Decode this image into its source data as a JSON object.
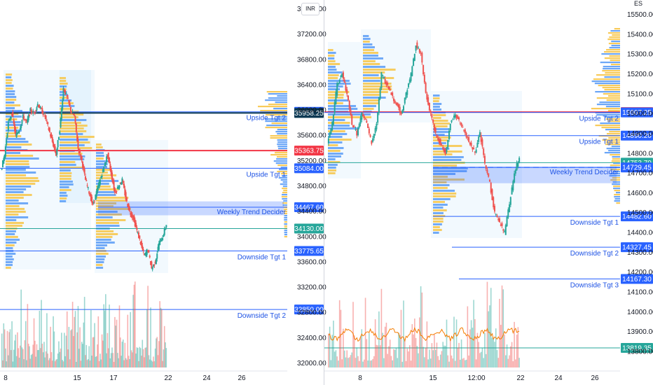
{
  "currency_badge": "INR",
  "settings_label": "ES",
  "panels": [
    {
      "id": "left",
      "price_axis_ticks": [
        "37600.00",
        "37200.00",
        "36800.00",
        "36400.00",
        "36000.00",
        "35600.00",
        "35200.00",
        "34800.00",
        "34400.00",
        "34000.00",
        "33600.00",
        "33200.00",
        "32800.00",
        "32400.00",
        "32000.00"
      ],
      "time_axis_ticks": [
        "8",
        "15",
        "17",
        "22",
        "24",
        "26"
      ],
      "lines": [
        {
          "label": "Upside Tgt 2",
          "price_tag": "35976.65",
          "color": "#2962ff"
        },
        {
          "label": "",
          "price_tag": "35958.25",
          "color": "#0b3954"
        },
        {
          "label": "",
          "price_tag": "35363.75",
          "color": "#f23645"
        },
        {
          "label": "Upside Tgt 1",
          "price_tag": "35084.00",
          "color": "#2962ff"
        },
        {
          "label": "Weekly Trend Decider",
          "price_tag": "34467.60",
          "color": "#2962ff"
        },
        {
          "label": "",
          "price_tag": "34130.00",
          "color": "#26a69a"
        },
        {
          "label": "Downside Tgt 1",
          "price_tag": "33775.65",
          "color": "#2962ff"
        },
        {
          "label": "Downside Tgt 2",
          "price_tag": "32850.00",
          "color": "#2962ff"
        }
      ]
    },
    {
      "id": "right",
      "price_axis_ticks": [
        "15500.00",
        "15400.00",
        "15300.00",
        "15200.00",
        "15100.00",
        "15000.00",
        "14900.00",
        "14800.00",
        "14700.00",
        "14600.00",
        "14500.00",
        "14400.00",
        "14300.00",
        "14200.00",
        "14100.00",
        "14000.00",
        "13900.00",
        "13800.00"
      ],
      "time_axis_ticks": [
        "8",
        "15",
        "12:00",
        "22",
        "24",
        "26"
      ],
      "lines": [
        {
          "label": "",
          "price_tag": "15008.65",
          "color": "#f23645"
        },
        {
          "label": "Upside Tgt 2",
          "price_tag": "15007.25",
          "color": "#2962ff"
        },
        {
          "label": "Upside Tgt 1",
          "price_tag": "14890.20",
          "color": "#2962ff"
        },
        {
          "label": "",
          "price_tag": "14753.70",
          "color": "#26a69a"
        },
        {
          "label": "Weekly Trend Decider",
          "price_tag": "14729.45",
          "color": "#2962ff"
        },
        {
          "label": "Downside Tgt 1",
          "price_tag": "14482.60",
          "color": "#2962ff"
        },
        {
          "label": "Downside Tgt 2",
          "price_tag": "14327.45",
          "color": "#2962ff"
        },
        {
          "label": "Downside Tgt 3",
          "price_tag": "14167.30",
          "color": "#2962ff"
        },
        {
          "label": "",
          "price_tag": "13819.35",
          "color": "#26a69a"
        }
      ]
    }
  ],
  "chart_data": [
    {
      "type": "candlestick",
      "title": "",
      "yrange": [
        31900,
        37700
      ],
      "grid": false,
      "x_ticks": [
        "8",
        "15",
        "17",
        "22",
        "24",
        "26"
      ],
      "levels": [
        {
          "name": "Upside Tgt 2",
          "value": 35976.65
        },
        {
          "value": 35958.25
        },
        {
          "value": 35363.75
        },
        {
          "name": "Upside Tgt 1",
          "value": 35084.0
        },
        {
          "name": "Weekly Trend Decider",
          "value": 34467.6,
          "zone": [
            34340,
            34560
          ]
        },
        {
          "value": 34130.0
        },
        {
          "name": "Downside Tgt 1",
          "value": 33775.65
        },
        {
          "name": "Downside Tgt 2",
          "value": 32850.0
        }
      ],
      "close_path": [
        35050,
        35300,
        35800,
        35950,
        35600,
        35700,
        35900,
        35800,
        36000,
        35950,
        36100,
        36000,
        35900,
        35700,
        35500,
        35300,
        35700,
        36350,
        36200,
        36000,
        35900,
        35400,
        35200,
        34900,
        34700,
        34500,
        34700,
        34900,
        35100,
        35300,
        35000,
        34700,
        34800,
        34900,
        34600,
        34400,
        34300,
        34100,
        33900,
        33700,
        33800,
        33500,
        33600,
        33900,
        34000,
        34200
      ]
    },
    {
      "type": "candlestick",
      "title": "",
      "yrange": [
        13710,
        15560
      ],
      "grid": false,
      "x_ticks": [
        "8",
        "15",
        "12:00",
        "22",
        "24",
        "26"
      ],
      "levels": [
        {
          "value": 15008.65
        },
        {
          "name": "Upside Tgt 2",
          "value": 15007.25
        },
        {
          "name": "Upside Tgt 1",
          "value": 14890.2
        },
        {
          "value": 14753.7
        },
        {
          "name": "Weekly Trend Decider",
          "value": 14729.45,
          "zone": [
            14650,
            14735
          ]
        },
        {
          "name": "Downside Tgt 1",
          "value": 14482.6
        },
        {
          "name": "Downside Tgt 2",
          "value": 14327.45
        },
        {
          "name": "Downside Tgt 3",
          "value": 14167.3
        },
        {
          "value": 13819.35
        }
      ],
      "close_path": [
        14850,
        14950,
        15150,
        15200,
        15100,
        14950,
        14900,
        15000,
        14950,
        14850,
        14950,
        15200,
        15150,
        15100,
        15050,
        15000,
        15100,
        15200,
        15350,
        15300,
        15100,
        15000,
        14900,
        14850,
        14800,
        14950,
        15000,
        14950,
        14900,
        14850,
        14800,
        14900,
        14750,
        14650,
        14500,
        14450,
        14400,
        14550,
        14700,
        14780
      ]
    }
  ]
}
